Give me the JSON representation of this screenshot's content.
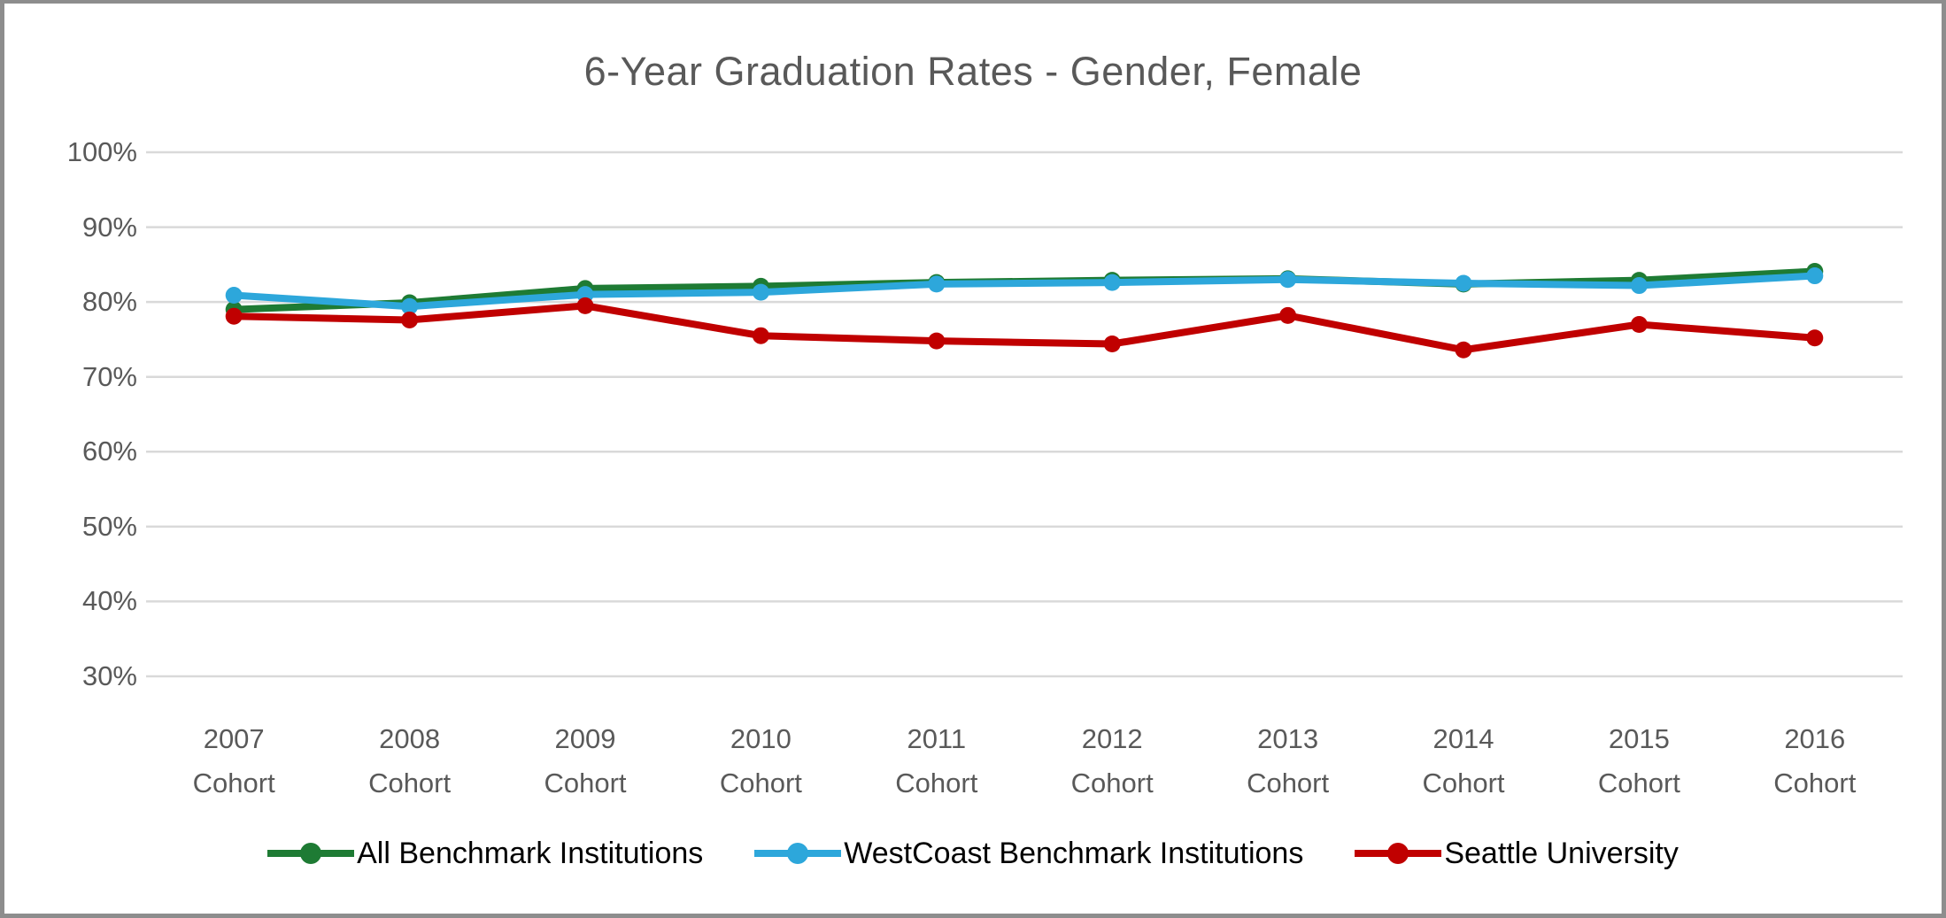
{
  "chart_data": {
    "type": "line",
    "title": "6-Year Graduation Rates - Gender, Female",
    "categories": [
      "2007",
      "2008",
      "2009",
      "2010",
      "2011",
      "2012",
      "2013",
      "2014",
      "2015",
      "2016"
    ],
    "category_suffix": "Cohort",
    "x_tick_labels": [
      "2007 Cohort",
      "2008 Cohort",
      "2009 Cohort",
      "2010 Cohort",
      "2011 Cohort",
      "2012 Cohort",
      "2013 Cohort",
      "2014 Cohort",
      "2015 Cohort",
      "2016 Cohort"
    ],
    "y_axis": {
      "min": 30,
      "max": 100,
      "step": 10,
      "format": "percent",
      "ticks": [
        100,
        90,
        80,
        70,
        60,
        50,
        40,
        30
      ],
      "tick_labels": [
        "100%",
        "90%",
        "80%",
        "70%",
        "60%",
        "50%",
        "40%",
        "30%"
      ]
    },
    "ylim": [
      30,
      100
    ],
    "grid": true,
    "legend_position": "bottom",
    "series": [
      {
        "name": "All Benchmark Institutions",
        "color": "#1e7b34",
        "values": [
          79.0,
          79.9,
          81.8,
          82.1,
          82.6,
          82.9,
          83.1,
          82.4,
          82.9,
          84.1
        ]
      },
      {
        "name": "WestCoast Benchmark Institutions",
        "color": "#2da7db",
        "values": [
          80.9,
          79.4,
          81.0,
          81.3,
          82.4,
          82.6,
          83.0,
          82.5,
          82.2,
          83.5
        ]
      },
      {
        "name": "Seattle University",
        "color": "#c00000",
        "values": [
          78.1,
          77.6,
          79.5,
          75.5,
          74.8,
          74.4,
          78.2,
          73.6,
          77.0,
          75.2
        ]
      }
    ]
  },
  "styles": {
    "title_color": "#595959",
    "axis_label_color": "#595959",
    "legend_text_color": "#000000",
    "gridline_color": "#d9d9d9",
    "background_color": "#ffffff",
    "frame_border_color": "#8d8d8d"
  }
}
